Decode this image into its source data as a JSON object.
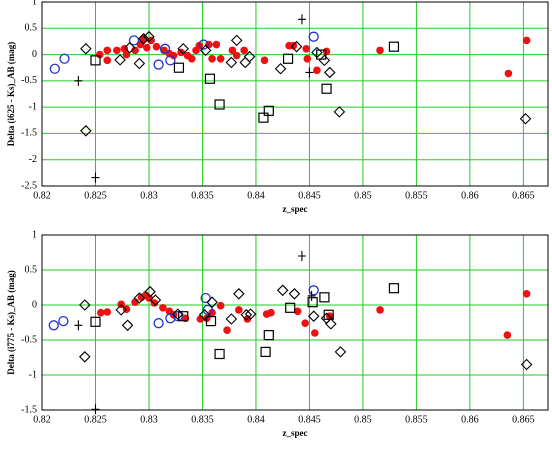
{
  "chart_data": [
    {
      "type": "scatter",
      "x_label": "z_spec",
      "y_label": "Delta (i625 - Ks)_AB (mag)",
      "xlim": [
        0.82,
        0.8673
      ],
      "xticks": [
        0.82,
        0.825,
        0.83,
        0.835,
        0.84,
        0.845,
        0.85,
        0.855,
        0.86,
        0.865
      ],
      "ylim": [
        -2.5,
        1
      ],
      "yticks": [
        1,
        0.5,
        0,
        -0.5,
        -1,
        -1.5,
        -2,
        -2.5
      ],
      "grid": true,
      "grid_color": "#22cc22",
      "series": [
        {
          "marker": "filled-circle",
          "color": "#ee1111",
          "x": [
            0.8254,
            0.8261,
            0.8261,
            0.827,
            0.8277,
            0.8279,
            0.8287,
            0.8292,
            0.8295,
            0.8298,
            0.8302,
            0.8307,
            0.8314,
            0.8319,
            0.8323,
            0.833,
            0.8336,
            0.834,
            0.8344,
            0.8347,
            0.8356,
            0.8363,
            0.8359,
            0.8367,
            0.8378,
            0.8382,
            0.8389,
            0.8408,
            0.8431,
            0.8435,
            0.8447,
            0.8448,
            0.8457,
            0.8466,
            0.8516,
            0.8636,
            0.8653
          ],
          "values": [
            0,
            0.08,
            -0.11,
            0.08,
            0.11,
            0,
            0.08,
            0.19,
            0.3,
            0.13,
            0.27,
            0.15,
            0.08,
            0.02,
            -0.02,
            0.04,
            -0.02,
            -0.08,
            0.08,
            0.17,
            0.19,
            0.19,
            -0.08,
            -0.08,
            0.08,
            -0.02,
            0.08,
            -0.11,
            0.17,
            0.17,
            0.11,
            -0.08,
            -0.3,
            0.06,
            0.08,
            -0.36,
            0.27
          ]
        },
        {
          "marker": "open-circle",
          "color": "#2233cc",
          "x": [
            0.8212,
            0.8221,
            0.8286,
            0.8309,
            0.8315,
            0.832,
            0.8351,
            0.8454
          ],
          "values": [
            -0.27,
            -0.08,
            0.27,
            -0.19,
            0.11,
            -0.11,
            0.19,
            0.34
          ]
        },
        {
          "marker": "open-square",
          "color": "#000000",
          "x": [
            0.825,
            0.8328,
            0.8357,
            0.8366,
            0.8407,
            0.8412,
            0.843,
            0.8461,
            0.8466,
            0.8529
          ],
          "values": [
            -0.11,
            -0.25,
            -0.46,
            -0.95,
            -1.2,
            -1.07,
            -0.08,
            0,
            -0.65,
            0.15
          ]
        },
        {
          "marker": "open-diamond",
          "color": "#000000",
          "x": [
            0.8241,
            0.8241,
            0.8273,
            0.8282,
            0.8291,
            0.8295,
            0.83,
            0.8332,
            0.8353,
            0.8377,
            0.8382,
            0.839,
            0.8394,
            0.8423,
            0.8438,
            0.8457,
            0.8464,
            0.8469,
            0.8478,
            0.8652
          ],
          "values": [
            0.11,
            -1.45,
            -0.1,
            0.13,
            -0.17,
            0.3,
            0.34,
            0.11,
            0.08,
            -0.15,
            0.27,
            -0.15,
            -0.04,
            -0.27,
            0.15,
            0.04,
            -0.11,
            -0.34,
            -1.09,
            -1.22
          ]
        },
        {
          "marker": "plus",
          "color": "#000000",
          "x": [
            0.8234,
            0.825,
            0.8443,
            0.845
          ],
          "values": [
            -0.5,
            -2.34,
            0.67,
            -0.34
          ]
        }
      ]
    },
    {
      "type": "scatter",
      "x_label": "z_spec",
      "y_label": "Delta (i775 - Ks)_AB (mag)",
      "xlim": [
        0.82,
        0.8673
      ],
      "xticks": [
        0.82,
        0.825,
        0.83,
        0.835,
        0.84,
        0.845,
        0.85,
        0.855,
        0.86,
        0.865
      ],
      "ylim": [
        -1.5,
        1
      ],
      "yticks": [
        1,
        0.5,
        0,
        -0.5,
        -1,
        -1.5
      ],
      "grid": true,
      "grid_color": "#22cc22",
      "series": [
        {
          "marker": "filled-circle",
          "color": "#ee1111",
          "x": [
            0.8255,
            0.8261,
            0.8274,
            0.8279,
            0.8287,
            0.8293,
            0.8297,
            0.83,
            0.8305,
            0.8313,
            0.8319,
            0.8323,
            0.8334,
            0.8348,
            0.8354,
            0.8359,
            0.8367,
            0.8373,
            0.8384,
            0.8392,
            0.841,
            0.8414,
            0.8439,
            0.8446,
            0.8455,
            0.8469,
            0.8516,
            0.8635,
            0.8653
          ],
          "values": [
            -0.11,
            -0.1,
            0.01,
            -0.06,
            0.04,
            0.11,
            0.14,
            0.1,
            0.03,
            -0.04,
            -0.09,
            -0.14,
            -0.19,
            -0.2,
            -0.19,
            -0.11,
            -0.01,
            -0.36,
            -0.07,
            -0.2,
            -0.13,
            -0.11,
            -0.09,
            -0.26,
            -0.4,
            -0.16,
            -0.07,
            -0.43,
            0.16
          ]
        },
        {
          "marker": "open-circle",
          "color": "#2233cc",
          "x": [
            0.8211,
            0.822,
            0.8309,
            0.832,
            0.8327,
            0.8353,
            0.8355,
            0.8454
          ],
          "values": [
            -0.29,
            -0.23,
            -0.26,
            -0.19,
            -0.16,
            0.1,
            -0.07,
            0.21
          ]
        },
        {
          "marker": "open-square",
          "color": "#000000",
          "x": [
            0.825,
            0.8332,
            0.8358,
            0.8366,
            0.8409,
            0.8412,
            0.8432,
            0.8464,
            0.8453,
            0.8468,
            0.8529
          ],
          "values": [
            -0.24,
            -0.16,
            -0.23,
            -0.7,
            -0.67,
            -0.43,
            -0.04,
            0.11,
            0.04,
            -0.14,
            0.24
          ]
        },
        {
          "marker": "open-diamond",
          "color": "#000000",
          "x": [
            0.824,
            0.824,
            0.8274,
            0.828,
            0.8291,
            0.8301,
            0.8306,
            0.8327,
            0.8352,
            0.8359,
            0.8377,
            0.8384,
            0.8391,
            0.8395,
            0.8425,
            0.8436,
            0.8454,
            0.8466,
            0.847,
            0.8479,
            0.8653
          ],
          "values": [
            0,
            -0.74,
            -0.07,
            -0.29,
            0.1,
            0.19,
            0.07,
            -0.13,
            -0.14,
            0.04,
            -0.2,
            0.16,
            -0.14,
            -0.13,
            0.21,
            0.16,
            -0.16,
            -0.19,
            -0.27,
            -0.67,
            -0.85
          ]
        },
        {
          "marker": "plus",
          "color": "#000000",
          "x": [
            0.8234,
            0.825,
            0.8443,
            0.8452
          ],
          "values": [
            -0.29,
            -1.49,
            0.7,
            0.13
          ]
        }
      ]
    }
  ]
}
